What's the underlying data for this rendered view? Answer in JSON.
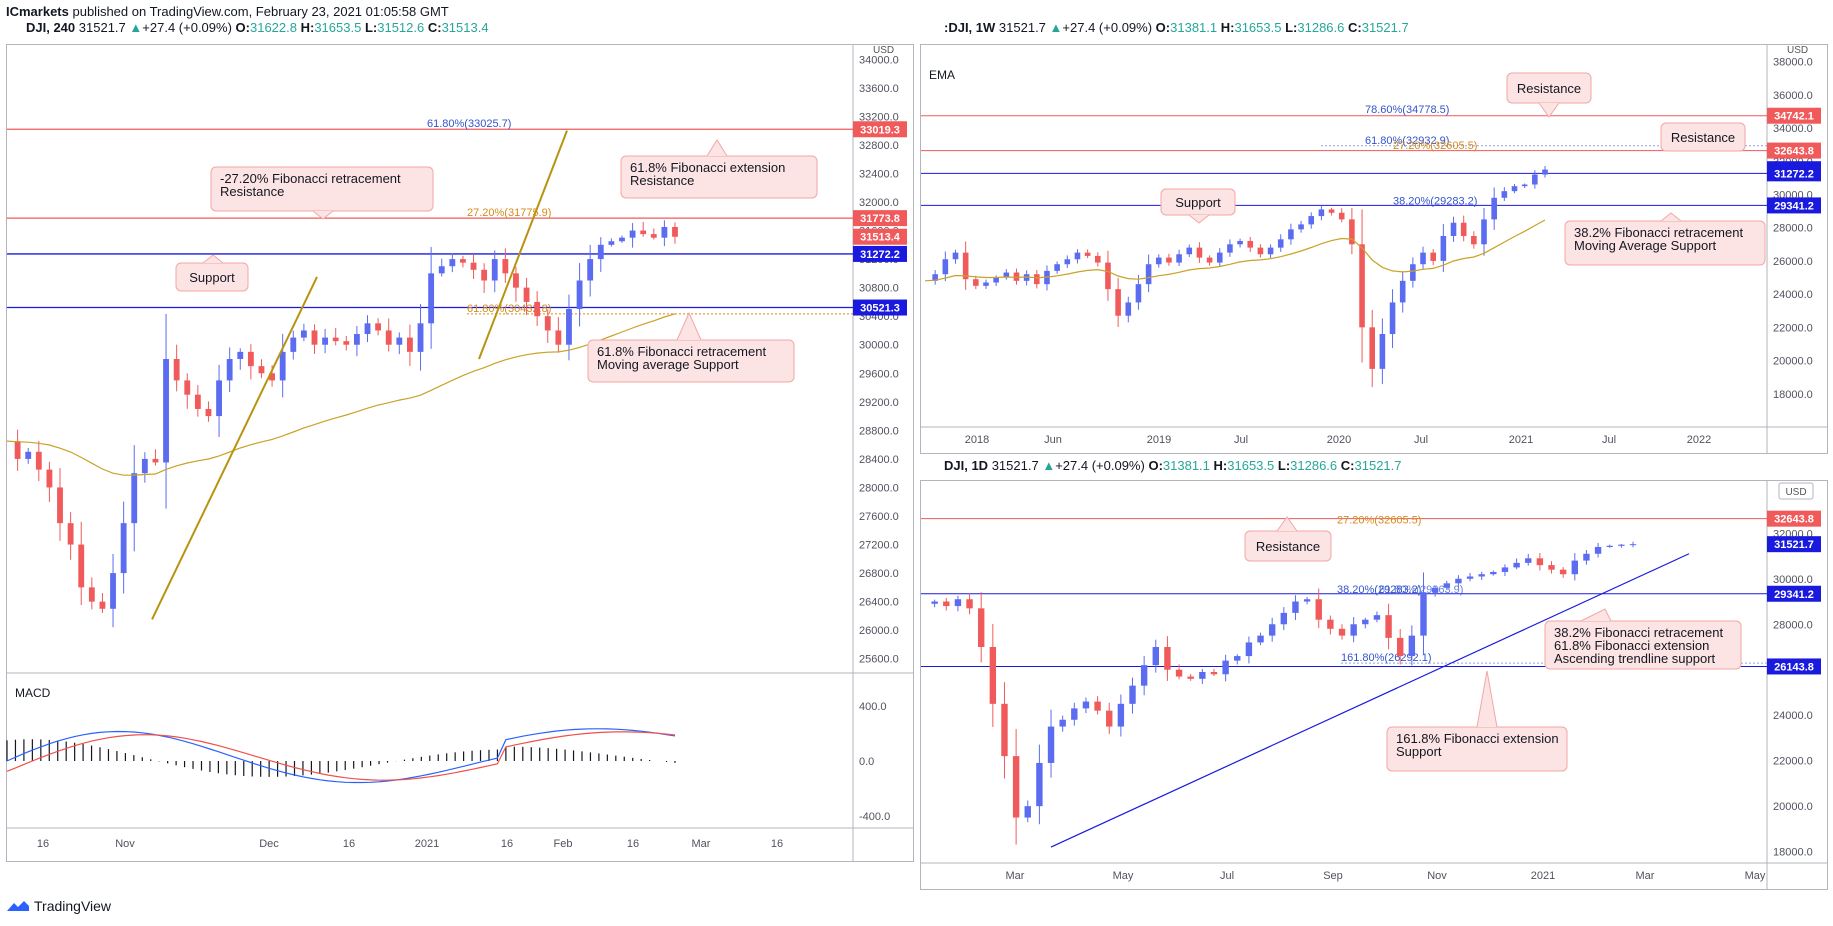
{
  "header": {
    "publisher": "ICmarkets",
    "rest": " published on TradingView.com, February 23, 2021 01:05:58 GMT"
  },
  "footer": {
    "brand": "TradingView"
  },
  "colors": {
    "up": "#5b6cf0",
    "down": "#f05a5a",
    "ema": "#c9a227",
    "resistance": "#f05a5a",
    "support": "#1a1adf",
    "fib_orange": "#d68a1a",
    "fib_blue": "#3355cc",
    "callout_bg": "#fde4e4",
    "callout_border": "#f3a6a6"
  },
  "panels": {
    "left": {
      "symbol": "DJI, 240",
      "last": "31521.7",
      "change": "+27.4 (+0.09%)",
      "o": "31622.8",
      "h": "31653.5",
      "l": "31512.6",
      "c": "31513.4",
      "currency": "USD",
      "y_ticks": [
        "34000.0",
        "33600.0",
        "33200.0",
        "32800.0",
        "32400.0",
        "32000.0",
        "31600.0",
        "31200.0",
        "30800.0",
        "30400.0",
        "30000.0",
        "29600.0",
        "29200.0",
        "28800.0",
        "28400.0",
        "28000.0",
        "27600.0",
        "27200.0",
        "26800.0",
        "26400.0",
        "26000.0",
        "25600.0"
      ],
      "x_ticks": [
        "16",
        "Nov",
        "Dec",
        "16",
        "2021",
        "16",
        "Feb",
        "16",
        "Mar",
        "16"
      ],
      "price_tags": [
        {
          "label": "33019.3",
          "kind": "res"
        },
        {
          "label": "31773.8",
          "kind": "res"
        },
        {
          "label": "31513.4",
          "kind": "res"
        },
        {
          "label": "31272.2",
          "kind": "sup"
        },
        {
          "label": "30521.3",
          "kind": "sup"
        }
      ],
      "fib_labels": [
        "61.80%(33025.7)",
        "27.20%(31775.9)",
        "61.80%(30432.8)"
      ],
      "callouts": [
        {
          "lines": [
            "-27.20%  Fibonacci retracement",
            "Resistance"
          ]
        },
        {
          "lines": [
            "61.8% Fibonacci extension",
            "Resistance"
          ]
        },
        {
          "lines": [
            "Support"
          ]
        },
        {
          "lines": [
            "61.8%  Fibonacci retracement",
            "Moving average Support"
          ]
        }
      ],
      "macd": {
        "title": "MACD",
        "y_ticks": [
          "400.0",
          "0.0",
          "-400.0"
        ]
      }
    },
    "weekly": {
      "symbol": ":DJI, 1W",
      "last": "31521.7",
      "change": "+27.4 (+0.09%)",
      "o": "31381.1",
      "h": "31653.5",
      "l": "31286.6",
      "c": "31521.7",
      "currency": "USD",
      "indicator": "EMA",
      "y_ticks": [
        "38000.0",
        "36000.0",
        "34000.0",
        "32000.0",
        "30000.0",
        "28000.0",
        "26000.0",
        "24000.0",
        "22000.0",
        "20000.0",
        "18000.0"
      ],
      "x_ticks": [
        "2018",
        "Jun",
        "2019",
        "Jul",
        "2020",
        "Jul",
        "2021",
        "Jul",
        "2022"
      ],
      "price_tags": [
        {
          "label": "34742.1",
          "kind": "res"
        },
        {
          "label": "32643.8",
          "kind": "res"
        },
        {
          "label": "31521.7",
          "kind": "sup"
        },
        {
          "label": "31272.2",
          "kind": "sup"
        },
        {
          "label": "29341.2",
          "kind": "sup"
        }
      ],
      "fib_labels": [
        "78.60%(34778.5)",
        "61.80%(32932.9)",
        "27.20%(32605.5)",
        "38.20%(29283.2)"
      ],
      "callouts": [
        {
          "lines": [
            "Resistance"
          ]
        },
        {
          "lines": [
            "Resistance"
          ]
        },
        {
          "lines": [
            "Support"
          ]
        },
        {
          "lines": [
            "38.2%  Fibonacci retracement",
            "Moving Average Support"
          ]
        }
      ]
    },
    "daily": {
      "symbol": "DJI, 1D",
      "last": "31521.7",
      "change": "+27.4 (+0.09%)",
      "o": "31381.1",
      "h": "31653.5",
      "l": "31286.6",
      "c": "31521.7",
      "currency": "USD",
      "y_ticks": [
        "34000.0",
        "32000.0",
        "30000.0",
        "28000.0",
        "26000.0",
        "24000.0",
        "22000.0",
        "20000.0",
        "18000.0"
      ],
      "x_ticks": [
        "Mar",
        "May",
        "Jul",
        "Sep",
        "Nov",
        "2021",
        "Mar",
        "May"
      ],
      "price_tags": [
        {
          "label": "32643.8",
          "kind": "res"
        },
        {
          "label": "31521.7",
          "kind": "sup"
        },
        {
          "label": "29341.2",
          "kind": "sup"
        },
        {
          "label": "26143.8",
          "kind": "sup"
        }
      ],
      "fib_labels": [
        "27.20%(32605.5)",
        "38.20%(29283.2)",
        "61.80%(29263.9)",
        "161.80%(26292.1)"
      ],
      "callouts": [
        {
          "lines": [
            "Resistance"
          ]
        },
        {
          "lines": [
            "38.2% Fibonacci retracement",
            "61.8% Fibonacci extension",
            "Ascending trendline support"
          ]
        },
        {
          "lines": [
            "161.8% Fibonacci extension",
            "Support"
          ]
        }
      ]
    }
  },
  "chart_data": [
    {
      "type": "candlestick",
      "title": "DJI, 240",
      "ylim": [
        25400,
        34200
      ],
      "horizontal_lines": [
        33019.3,
        31773.8,
        31272.2,
        30521.3
      ],
      "series": [
        {
          "name": "price_path",
          "values": [
            28650,
            28400,
            28500,
            28250,
            28000,
            27500,
            27200,
            26600,
            26400,
            26300,
            26800,
            27500,
            28200,
            28400,
            28350,
            29800,
            29500,
            29300,
            29100,
            29000,
            29500,
            29800,
            29900,
            29700,
            29600,
            29500,
            29900,
            30100,
            30200,
            30000,
            30100,
            30050,
            30000,
            30150,
            30300,
            30200,
            30000,
            30100,
            29900,
            30300,
            31000,
            31100,
            31200,
            31150,
            31050,
            30900,
            31200,
            31000,
            30800,
            30600,
            30400,
            30200,
            30000,
            30500,
            30900,
            31200,
            31400,
            31450,
            31500,
            31600,
            31550,
            31500,
            31650,
            31513
          ]
        }
      ]
    },
    {
      "type": "candlestick",
      "title": ":DJI, 1W",
      "ylim": [
        16000,
        39000
      ],
      "horizontal_lines": [
        34742.1,
        32643.8,
        31521.7,
        29341.2
      ],
      "series": [
        {
          "name": "price_path",
          "values": [
            24800,
            25200,
            26100,
            26500,
            24900,
            24500,
            24700,
            25000,
            25300,
            24800,
            25200,
            24600,
            25400,
            25800,
            26100,
            26500,
            26300,
            25900,
            24300,
            22700,
            23500,
            24600,
            25800,
            26200,
            25900,
            26400,
            26800,
            26200,
            25900,
            26500,
            27000,
            27200,
            26800,
            26400,
            26800,
            27300,
            27900,
            28200,
            28700,
            29100,
            28900,
            28500,
            27000,
            22000,
            19500,
            21600,
            23500,
            24800,
            25800,
            26500,
            26000,
            27500,
            28300,
            27500,
            27000,
            28500,
            29800,
            30200,
            30500,
            30600,
            31200,
            31500
          ]
        }
      ]
    },
    {
      "type": "candlestick",
      "title": "DJI, 1D",
      "ylim": [
        17500,
        34300
      ],
      "horizontal_lines": [
        32643.8,
        29341.2,
        26143.8
      ],
      "series": [
        {
          "name": "price_path",
          "values": [
            28900,
            29000,
            28800,
            29100,
            28700,
            27000,
            24500,
            22200,
            19500,
            20000,
            21900,
            23500,
            23800,
            24300,
            24600,
            24200,
            23500,
            24500,
            25300,
            26200,
            27000,
            26000,
            25700,
            25600,
            25900,
            25800,
            26400,
            26600,
            27200,
            27500,
            28000,
            28500,
            29000,
            29100,
            28200,
            27800,
            27500,
            28000,
            28200,
            28400,
            27400,
            26600,
            27500,
            29400,
            29600,
            29800,
            30000,
            30100,
            30200,
            30300,
            30500,
            30700,
            30900,
            30600,
            30400,
            30200,
            30800,
            31100,
            31400,
            31450,
            31500,
            31521
          ]
        }
      ]
    }
  ]
}
